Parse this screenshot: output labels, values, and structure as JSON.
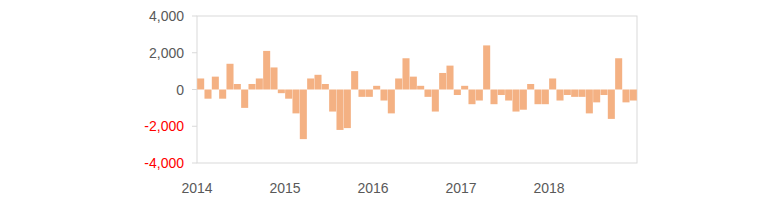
{
  "chart_data": {
    "type": "bar",
    "categories": [
      "2014",
      null,
      null,
      null,
      null,
      null,
      null,
      null,
      null,
      null,
      null,
      null,
      "2015",
      null,
      null,
      null,
      null,
      null,
      null,
      null,
      null,
      null,
      null,
      null,
      "2016",
      null,
      null,
      null,
      null,
      null,
      null,
      null,
      null,
      null,
      null,
      null,
      "2017",
      null,
      null,
      null,
      null,
      null,
      null,
      null,
      null,
      null,
      null,
      null,
      "2018",
      null,
      null,
      null,
      null,
      null,
      null,
      null,
      null,
      null,
      null,
      null
    ],
    "values": [
      600,
      -500,
      700,
      -500,
      1400,
      300,
      -1000,
      300,
      600,
      2100,
      1200,
      -200,
      -500,
      -1300,
      -2700,
      600,
      800,
      300,
      -1200,
      -2200,
      -2100,
      1000,
      -400,
      -400,
      200,
      -600,
      -1300,
      600,
      1700,
      700,
      200,
      -400,
      -1200,
      900,
      1300,
      -300,
      200,
      -800,
      -600,
      2400,
      -800,
      -300,
      -600,
      -1200,
      -1100,
      300,
      -800,
      -800,
      600,
      -600,
      -300,
      -400,
      -400,
      -1300,
      -700,
      -300,
      -1600,
      1700,
      -700,
      -600
    ],
    "color": "#f4b183",
    "ylim": [
      -4000,
      4000
    ],
    "yticks": [
      {
        "value": -4000,
        "label": "-4,000"
      },
      {
        "value": -2000,
        "label": "-2,000"
      },
      0,
      {
        "value": 2000,
        "label": "2,000"
      },
      {
        "value": 4000,
        "label": "4,000"
      }
    ],
    "grid": false
  }
}
